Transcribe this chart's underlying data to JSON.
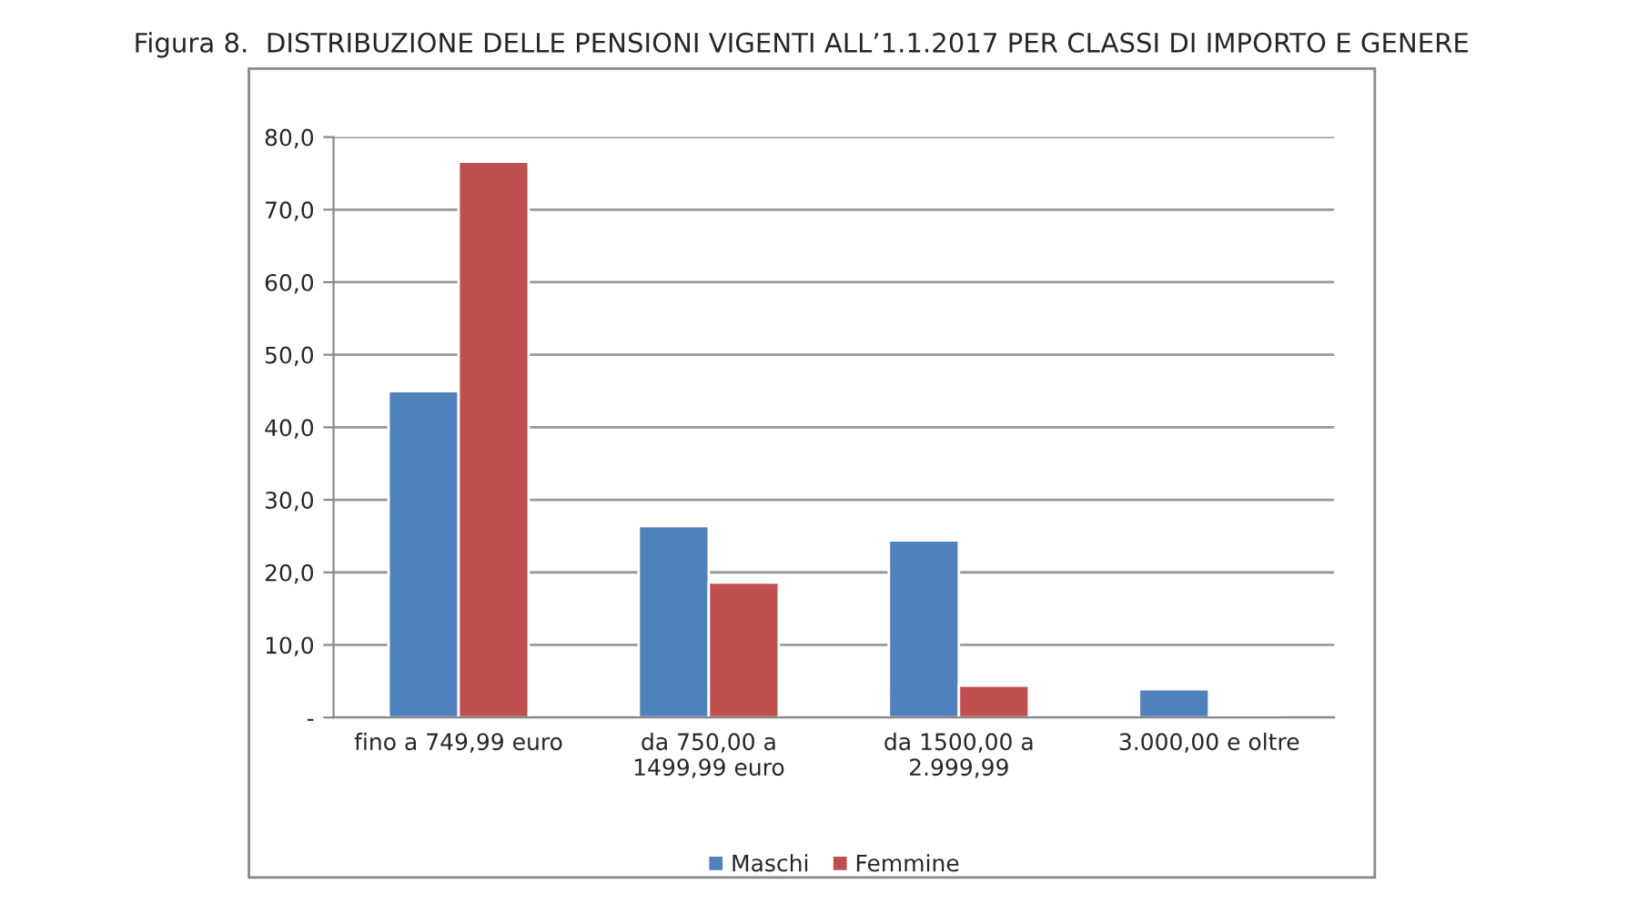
{
  "chart_data": {
    "type": "bar",
    "title": "Figura 8.  DISTRIBUZIONE DELLE PENSIONI VIGENTI ALL’1.1.2017 PER CLASSI DI IMPORTO E GENERE",
    "categories": [
      "fino a 749,99 euro",
      "da 750,00 a\n1499,99 euro",
      "da 1500,00 a\n2.999,99",
      "3.000,00 e oltre"
    ],
    "series": [
      {
        "name": "Maschi",
        "color": "#4f81bd",
        "values": [
          45.0,
          26.4,
          24.4,
          3.9
        ]
      },
      {
        "name": "Femmine",
        "color": "#c0504d",
        "values": [
          76.6,
          18.6,
          4.4,
          0.3
        ]
      }
    ],
    "ylim": [
      0,
      80
    ],
    "yticks": [
      {
        "value": 0,
        "label": "-"
      },
      {
        "value": 10,
        "label": "10,0"
      },
      {
        "value": 20,
        "label": "20,0"
      },
      {
        "value": 30,
        "label": "30,0"
      },
      {
        "value": 40,
        "label": "40,0"
      },
      {
        "value": 50,
        "label": "50,0"
      },
      {
        "value": 60,
        "label": "60,0"
      },
      {
        "value": 70,
        "label": "70,0"
      },
      {
        "value": 80,
        "label": "80,0"
      }
    ],
    "grid": "y",
    "legend": "bottom"
  }
}
